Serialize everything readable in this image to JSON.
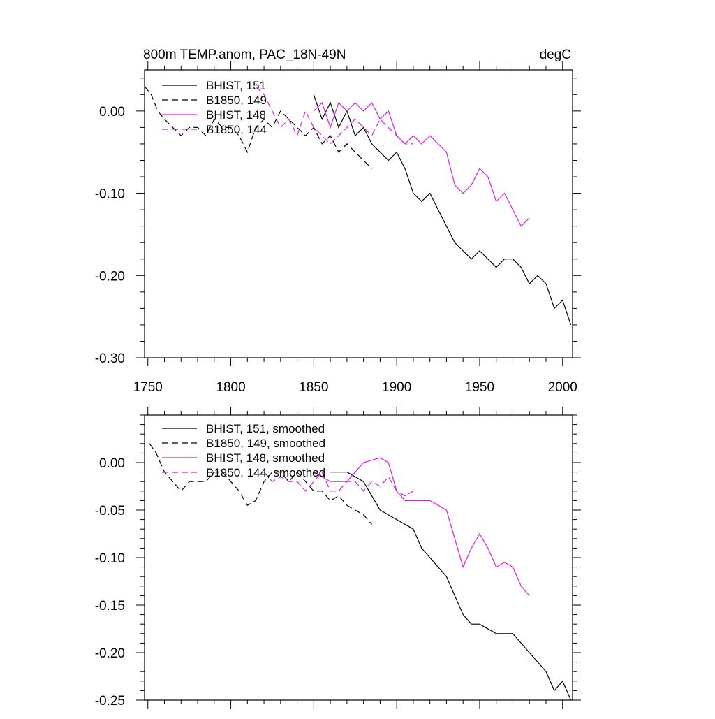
{
  "chart_data": [
    {
      "type": "line",
      "title": "800m TEMP.anom, PAC_18N-49N",
      "units": "degC",
      "xlabel": "",
      "ylabel": "",
      "xlim": [
        1748,
        2006
      ],
      "ylim": [
        -0.3,
        0.05
      ],
      "xticks": [
        1750,
        1800,
        1850,
        1900,
        1950,
        2000
      ],
      "xtick_labels": [
        "1750",
        "1800",
        "1850",
        "1900",
        "1950",
        "2000"
      ],
      "yticks": [
        0.0,
        -0.1,
        -0.2,
        -0.3
      ],
      "ytick_labels": [
        "0.00",
        "-0.10",
        "-0.20",
        "-0.30"
      ],
      "legend_position": "top-left",
      "grid": false,
      "series": [
        {
          "name": "BHIST, 151",
          "color": "#000000",
          "dash": "solid",
          "x": [
            1850,
            1855,
            1860,
            1865,
            1870,
            1875,
            1880,
            1885,
            1890,
            1895,
            1900,
            1905,
            1910,
            1915,
            1920,
            1925,
            1930,
            1935,
            1940,
            1945,
            1950,
            1955,
            1960,
            1965,
            1970,
            1975,
            1980,
            1985,
            1990,
            1995,
            2000,
            2005
          ],
          "values": [
            0.02,
            -0.01,
            0.01,
            -0.02,
            0.0,
            -0.03,
            -0.02,
            -0.04,
            -0.05,
            -0.06,
            -0.05,
            -0.07,
            -0.1,
            -0.11,
            -0.1,
            -0.12,
            -0.14,
            -0.16,
            -0.17,
            -0.18,
            -0.17,
            -0.18,
            -0.19,
            -0.18,
            -0.18,
            -0.19,
            -0.21,
            -0.2,
            -0.21,
            -0.24,
            -0.23,
            -0.26
          ]
        },
        {
          "name": "B1850, 149",
          "color": "#000000",
          "dash": "dashed",
          "x": [
            1748,
            1752,
            1756,
            1760,
            1765,
            1770,
            1775,
            1780,
            1785,
            1790,
            1795,
            1800,
            1805,
            1810,
            1815,
            1820,
            1825,
            1830,
            1835,
            1840,
            1845,
            1850,
            1855,
            1860,
            1865,
            1870,
            1875,
            1880,
            1885
          ],
          "values": [
            0.03,
            0.02,
            0.0,
            -0.01,
            -0.02,
            -0.03,
            -0.02,
            -0.02,
            -0.03,
            -0.01,
            -0.02,
            -0.02,
            -0.03,
            -0.05,
            -0.02,
            -0.01,
            -0.02,
            0.0,
            -0.01,
            -0.02,
            -0.03,
            -0.02,
            -0.04,
            -0.03,
            -0.05,
            -0.04,
            -0.05,
            -0.06,
            -0.07
          ]
        },
        {
          "name": "BHIST, 148",
          "color": "#e11be1",
          "dash": "solid",
          "x": [
            1850,
            1855,
            1860,
            1865,
            1870,
            1875,
            1880,
            1885,
            1890,
            1895,
            1900,
            1905,
            1910,
            1915,
            1920,
            1925,
            1930,
            1935,
            1940,
            1945,
            1950,
            1955,
            1960,
            1965,
            1970,
            1975,
            1980
          ],
          "values": [
            0.0,
            0.01,
            -0.02,
            0.01,
            0.0,
            0.01,
            0.0,
            0.01,
            -0.01,
            0.0,
            -0.03,
            -0.04,
            -0.03,
            -0.04,
            -0.03,
            -0.04,
            -0.05,
            -0.09,
            -0.1,
            -0.09,
            -0.07,
            -0.08,
            -0.11,
            -0.1,
            -0.12,
            -0.14,
            -0.13
          ]
        },
        {
          "name": "B1850, 144",
          "color": "#e11be1",
          "dash": "dashed",
          "x": [
            1815,
            1820,
            1825,
            1830,
            1835,
            1840,
            1845,
            1850,
            1855,
            1860,
            1865,
            1870,
            1875,
            1880,
            1885,
            1890,
            1895,
            1900,
            1905,
            1910
          ],
          "values": [
            0.03,
            0.02,
            0.0,
            -0.02,
            -0.01,
            -0.03,
            0.0,
            -0.02,
            -0.03,
            -0.04,
            -0.03,
            -0.02,
            -0.01,
            -0.02,
            -0.03,
            -0.01,
            -0.02,
            -0.03,
            -0.04,
            -0.04
          ]
        }
      ]
    },
    {
      "type": "line",
      "title": "",
      "xlabel": "",
      "ylabel": "",
      "xlim": [
        1748,
        2006
      ],
      "ylim": [
        -0.25,
        0.05
      ],
      "xticks": [
        1750,
        1800,
        1850,
        1900,
        1950,
        2000
      ],
      "yticks": [
        0.0,
        -0.05,
        -0.1,
        -0.15,
        -0.2,
        -0.25
      ],
      "ytick_labels": [
        "0.00",
        "-0.05",
        "-0.10",
        "-0.15",
        "-0.20",
        "-0.25"
      ],
      "legend_position": "top-left",
      "grid": false,
      "series": [
        {
          "name": "BHIST, 151, smoothed",
          "color": "#000000",
          "dash": "solid",
          "x": [
            1860,
            1870,
            1880,
            1890,
            1900,
            1910,
            1915,
            1920,
            1930,
            1940,
            1945,
            1950,
            1960,
            1970,
            1975,
            1980,
            1985,
            1990,
            1995,
            2000,
            2005
          ],
          "values": [
            -0.01,
            -0.01,
            -0.02,
            -0.05,
            -0.06,
            -0.07,
            -0.09,
            -0.1,
            -0.12,
            -0.16,
            -0.17,
            -0.17,
            -0.18,
            -0.18,
            -0.19,
            -0.2,
            -0.21,
            -0.22,
            -0.24,
            -0.23,
            -0.25
          ]
        },
        {
          "name": "B1850, 149, smoothed",
          "color": "#000000",
          "dash": "dashed",
          "x": [
            1751,
            1755,
            1760,
            1765,
            1770,
            1775,
            1780,
            1785,
            1790,
            1795,
            1800,
            1805,
            1810,
            1815,
            1820,
            1825,
            1830,
            1835,
            1840,
            1845,
            1850,
            1855,
            1860,
            1865,
            1870,
            1875,
            1880,
            1885
          ],
          "values": [
            0.02,
            0.01,
            -0.01,
            -0.02,
            -0.03,
            -0.02,
            -0.02,
            -0.02,
            -0.01,
            -0.01,
            -0.02,
            -0.03,
            -0.045,
            -0.04,
            -0.02,
            -0.01,
            -0.01,
            -0.02,
            -0.01,
            -0.02,
            -0.03,
            -0.03,
            -0.04,
            -0.035,
            -0.045,
            -0.05,
            -0.055,
            -0.065
          ]
        },
        {
          "name": "BHIST, 148, smoothed",
          "color": "#e11be1",
          "dash": "solid",
          "x": [
            1850,
            1860,
            1870,
            1880,
            1890,
            1895,
            1900,
            1905,
            1910,
            1920,
            1930,
            1935,
            1940,
            1945,
            1950,
            1955,
            1960,
            1965,
            1970,
            1975,
            1980
          ],
          "values": [
            -0.01,
            -0.02,
            -0.02,
            0.0,
            0.005,
            0.0,
            -0.03,
            -0.04,
            -0.04,
            -0.04,
            -0.05,
            -0.08,
            -0.11,
            -0.09,
            -0.075,
            -0.09,
            -0.11,
            -0.105,
            -0.11,
            -0.13,
            -0.14
          ]
        },
        {
          "name": "B1850, 144, smoothed",
          "color": "#e11be1",
          "dash": "dashed",
          "x": [
            1820,
            1825,
            1830,
            1835,
            1840,
            1845,
            1850,
            1855,
            1860,
            1865,
            1870,
            1875,
            1880,
            1885,
            1890,
            1895,
            1900,
            1905,
            1910
          ],
          "values": [
            -0.01,
            -0.02,
            -0.015,
            -0.02,
            -0.02,
            -0.03,
            -0.02,
            -0.01,
            -0.03,
            -0.03,
            -0.02,
            -0.02,
            -0.03,
            -0.02,
            -0.025,
            -0.015,
            -0.03,
            -0.035,
            -0.03
          ]
        }
      ]
    }
  ]
}
